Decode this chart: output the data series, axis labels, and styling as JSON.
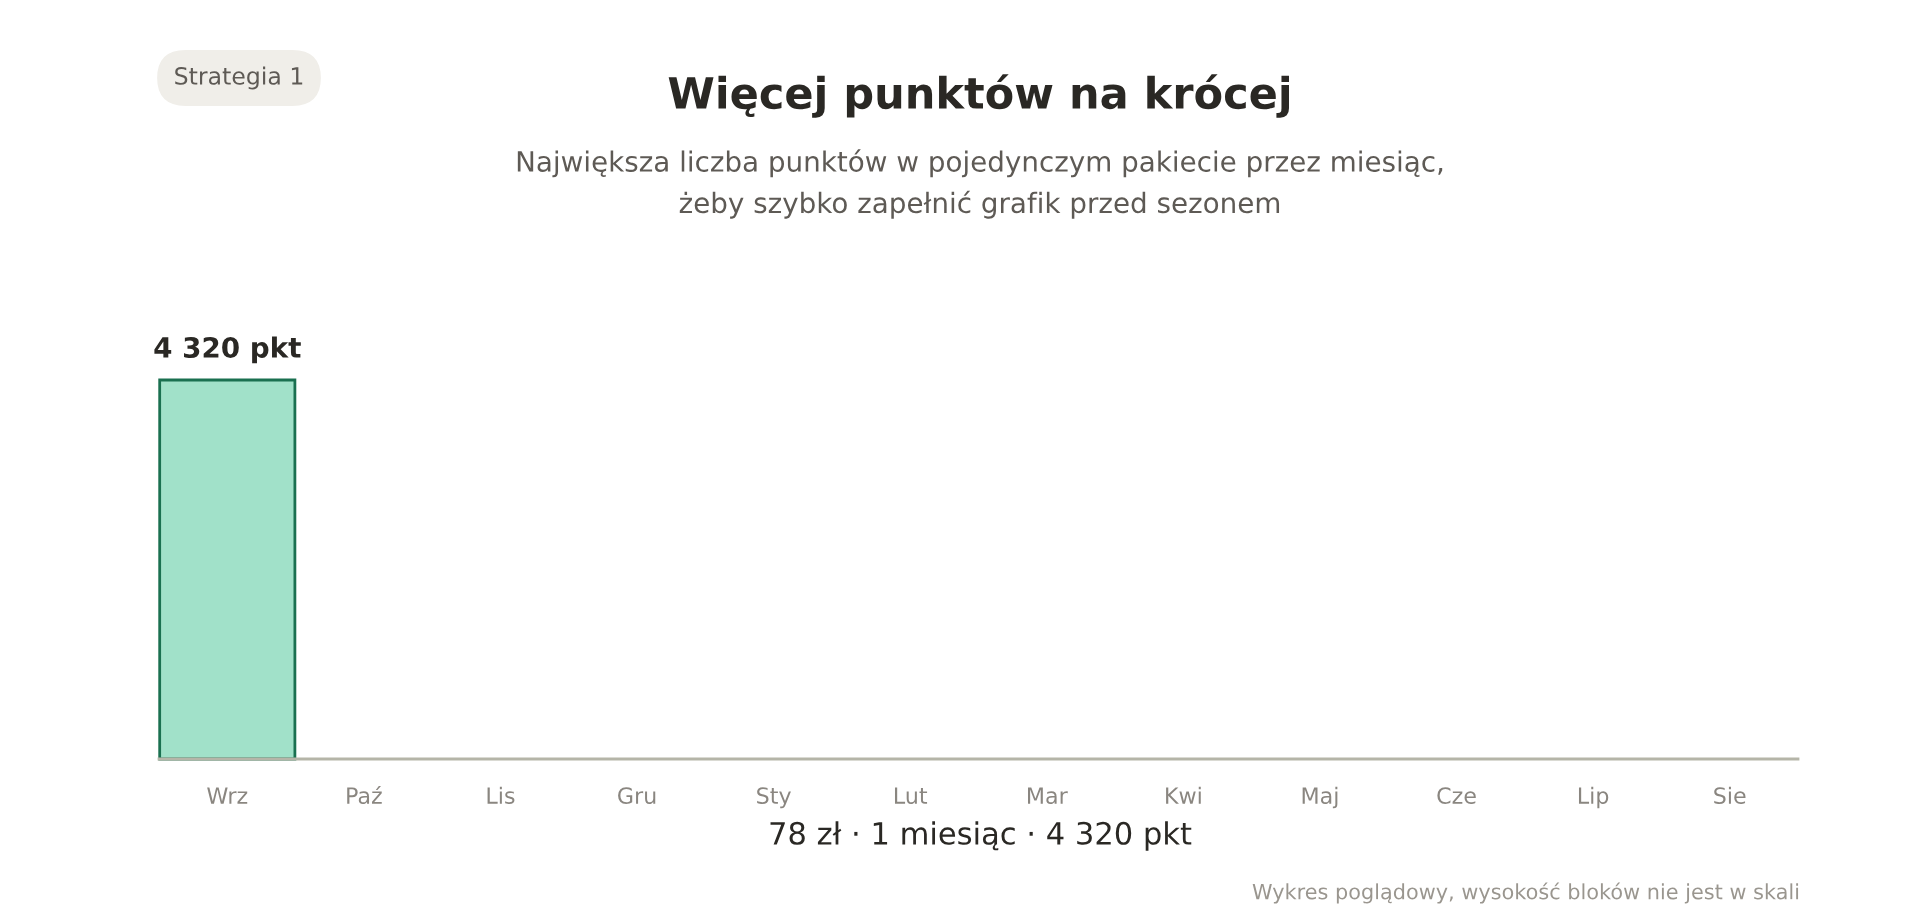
{
  "chart_data": {
    "type": "bar",
    "title": "Więcej punktów na krócej",
    "subtitle": "Największa liczba punktów w pojedynczym pakiecie przez miesiąc,\nżeby szybko zapełnić grafik przed sezonem",
    "xlabel": "78 zł · 1 miesiąc · 4 320 pkt",
    "categories": [
      "Wrz",
      "Paź",
      "Lis",
      "Gru",
      "Sty",
      "Lut",
      "Mar",
      "Kwi",
      "Maj",
      "Cze",
      "Lip",
      "Sie"
    ],
    "values": [
      4320,
      null,
      null,
      null,
      null,
      null,
      null,
      null,
      null,
      null,
      null,
      null
    ],
    "value_labels": [
      "4 320 pkt",
      null,
      null,
      null,
      null,
      null,
      null,
      null,
      null,
      null,
      null,
      null
    ],
    "color": "#a1e1c9",
    "ylim": [
      0,
      4320
    ],
    "annotations": [
      "Strategia 1",
      "Wykres poglądowy, wysokość bloków nie jest w skali"
    ]
  }
}
